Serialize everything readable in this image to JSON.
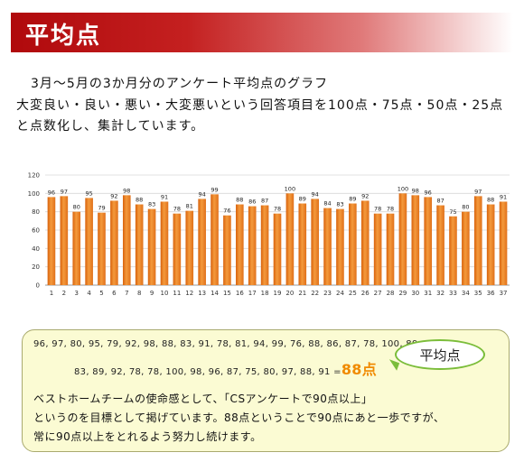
{
  "header": {
    "title": "平均点"
  },
  "subtitle": "3月～5月の3か月分のアンケート平均点のグラフ",
  "description": "大変良い・良い・悪い・大変悪いという回答項目を100点・75点・50点・25点と点数化し、集計しています。",
  "chart_data": {
    "type": "bar",
    "categories": [
      "1",
      "2",
      "3",
      "4",
      "5",
      "6",
      "7",
      "8",
      "9",
      "10",
      "11",
      "12",
      "13",
      "14",
      "15",
      "16",
      "17",
      "18",
      "19",
      "20",
      "21",
      "22",
      "23",
      "24",
      "25",
      "26",
      "27",
      "28",
      "29",
      "30",
      "31",
      "32",
      "33",
      "34",
      "35",
      "36",
      "37"
    ],
    "values": [
      96,
      97,
      80,
      95,
      79,
      92,
      98,
      88,
      83,
      91,
      78,
      81,
      94,
      99,
      76,
      88,
      86,
      87,
      78,
      100,
      89,
      94,
      84,
      83,
      89,
      92,
      78,
      78,
      100,
      98,
      96,
      87,
      75,
      80,
      97,
      88,
      91
    ],
    "ylim": [
      0,
      120
    ],
    "yticks": [
      0,
      20,
      40,
      60,
      80,
      100,
      120
    ],
    "bar_color": "#ee7a1a",
    "grid": true
  },
  "summary": {
    "line1": "96, 97, 80, 95, 79, 92, 98, 88, 83, 91, 78, 81, 94, 99, 76, 88, 86, 87, 78, 100, 89, 94, 84,",
    "line2": "83, 89, 92, 78, 78, 100, 98, 96, 87, 75, 80, 97, 88, 91 =",
    "result": "88点",
    "callout": "平均点"
  },
  "message": {
    "line1": "ベストホームチームの使命感として、「CSアンケートで90点以上」",
    "line2": "というのを目標として掲げています。88点ということで90点にあと一歩ですが、",
    "line3": "常に90点以上をとれるよう努力し続けます。"
  }
}
